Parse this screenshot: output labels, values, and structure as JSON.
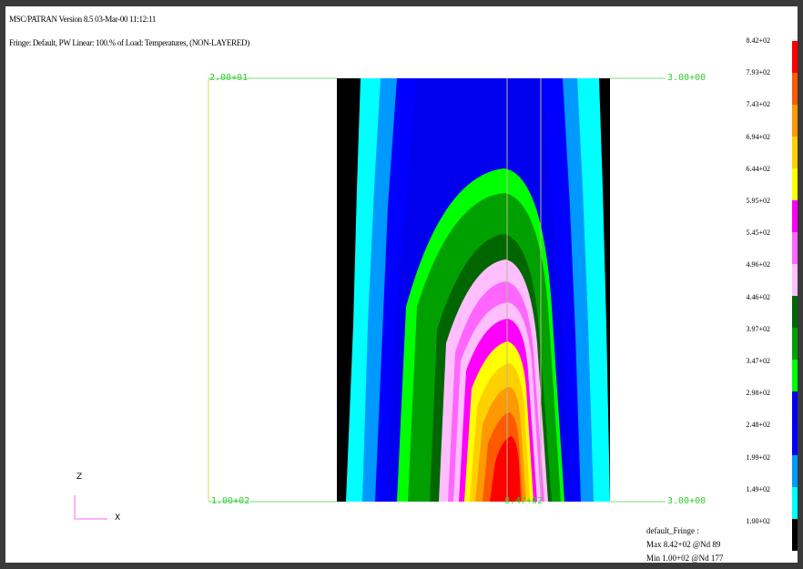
{
  "header": {
    "version_line": "MSC/PATRAN Version 8.5 03-Mar-00 11:12:11",
    "plot_title": "Fringe: Default, PW Linear: 100.% of Load: Temperatures, (NON-LAYERED)"
  },
  "coords": {
    "top_left": "2.00+01",
    "top_right": "3.00+00",
    "bottom_left": "1.00+02",
    "bottom_mid": "8.47+02",
    "bottom_right": "3.00+00"
  },
  "legend": {
    "labels": [
      "8.42+02",
      "7.93+02",
      "7.43+02",
      "6.94+02",
      "6.44+02",
      "5.95+02",
      "5.45+02",
      "4.96+02",
      "4.46+02",
      "3.97+02",
      "3.47+02",
      "2.98+02",
      "2.48+02",
      "1.99+02",
      "1.49+02",
      "1.00+02"
    ],
    "colors": [
      "#ff0000",
      "#ff5a00",
      "#ff9900",
      "#ffd000",
      "#ffff00",
      "#ff00ff",
      "#ff66ff",
      "#ffbfff",
      "#006600",
      "#00a000",
      "#00ff00",
      "#0000ee",
      "#0000ff",
      "#0099ff",
      "#00ffff",
      "#000000"
    ]
  },
  "footer": {
    "fringe_name": "default_Fringe :",
    "max_line": "Max 8.42+02 @Nd 89",
    "min_line": "Min 1.00+02 @Nd 177"
  },
  "axes": {
    "z": "Z",
    "x": "X"
  }
}
